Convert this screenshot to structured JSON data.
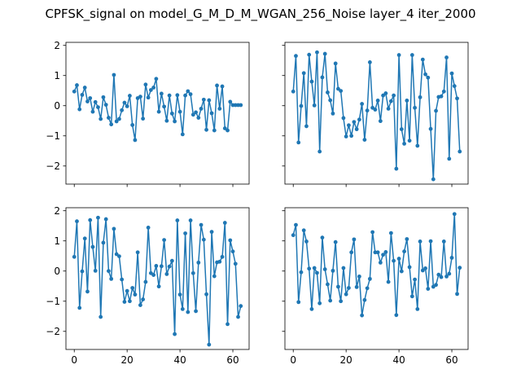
{
  "figure": {
    "title": "CPFSK_signal on model_G_M_D_M_WGAN_256_Noise layer_4 iter_2000"
  },
  "chart_data": [
    {
      "type": "line",
      "panel": "top-left",
      "xlim": [
        -3.15,
        66.15
      ],
      "ylim": [
        -2.6,
        2.1
      ],
      "xticks": [
        0,
        20,
        40,
        60
      ],
      "yticks": [
        -2,
        -1,
        0,
        1,
        2
      ],
      "show_xtick_labels": false,
      "show_ytick_labels": true,
      "color": "#1f77b4",
      "markers": true,
      "x": [
        0,
        1,
        2,
        3,
        4,
        5,
        6,
        7,
        8,
        9,
        10,
        11,
        12,
        13,
        14,
        15,
        16,
        17,
        18,
        19,
        20,
        21,
        22,
        23,
        24,
        25,
        26,
        27,
        28,
        29,
        30,
        31,
        32,
        33,
        34,
        35,
        36,
        37,
        38,
        39,
        40,
        41,
        42,
        43,
        44,
        45,
        46,
        47,
        48,
        49,
        50,
        51,
        52,
        53,
        54,
        55,
        56,
        57,
        58,
        59,
        60,
        61,
        62,
        63
      ],
      "y": [
        0.47,
        0.68,
        -0.12,
        0.36,
        0.6,
        0.14,
        0.25,
        -0.2,
        0.12,
        -0.05,
        -0.44,
        0.28,
        0.03,
        -0.4,
        -0.62,
        1.02,
        -0.52,
        -0.44,
        -0.15,
        0.1,
        -0.02,
        0.33,
        -0.64,
        -1.14,
        0.25,
        0.3,
        -0.43,
        0.7,
        0.27,
        0.52,
        0.6,
        0.89,
        -0.2,
        0.4,
        -0.03,
        -0.5,
        0.34,
        -0.26,
        -0.52,
        0.35,
        -0.2,
        -0.95,
        0.34,
        0.48,
        0.38,
        -0.3,
        -0.22,
        -0.4,
        -0.1,
        0.2,
        -0.8,
        0.18,
        -0.25,
        -0.82,
        0.67,
        -0.1,
        0.64,
        -0.75,
        -0.82,
        0.13,
        0.02,
        0.02,
        0.02,
        0.02
      ]
    },
    {
      "type": "line",
      "panel": "top-right",
      "xlim": [
        -3.15,
        66.15
      ],
      "ylim": [
        -2.6,
        2.1
      ],
      "xticks": [
        0,
        20,
        40,
        60
      ],
      "yticks": [
        -2,
        -1,
        0,
        1,
        2
      ],
      "show_xtick_labels": false,
      "show_ytick_labels": false,
      "color": "#1f77b4",
      "markers": true,
      "x": [
        0,
        1,
        2,
        3,
        4,
        5,
        6,
        7,
        8,
        9,
        10,
        11,
        12,
        13,
        14,
        15,
        16,
        17,
        18,
        19,
        20,
        21,
        22,
        23,
        24,
        25,
        26,
        27,
        28,
        29,
        30,
        31,
        32,
        33,
        34,
        35,
        36,
        37,
        38,
        39,
        40,
        41,
        42,
        43,
        44,
        45,
        46,
        47,
        48,
        49,
        50,
        51,
        52,
        53,
        54,
        55,
        56,
        57,
        58,
        59,
        60,
        61,
        62,
        63
      ],
      "y": [
        0.47,
        1.65,
        -1.22,
        -0.01,
        1.08,
        -0.68,
        1.69,
        0.8,
        0.01,
        1.77,
        -1.52,
        0.94,
        1.72,
        0.44,
        0.18,
        -0.26,
        1.4,
        0.56,
        0.49,
        -0.41,
        -1.02,
        -0.65,
        -1.0,
        -0.54,
        -0.78,
        -0.46,
        0.06,
        -1.13,
        -0.16,
        1.44,
        -0.07,
        -0.13,
        0.17,
        -0.51,
        0.34,
        0.41,
        -0.1,
        0.15,
        0.34,
        -2.09,
        1.68,
        -0.78,
        -1.26,
        0.17,
        -1.16,
        1.68,
        -0.07,
        -1.33,
        0.28,
        1.53,
        1.04,
        0.93,
        -0.77,
        -2.44,
        -0.17,
        0.29,
        0.31,
        0.47,
        1.6,
        -1.76,
        1.07,
        0.65,
        0.24,
        -1.52
      ]
    },
    {
      "type": "line",
      "panel": "bottom-left",
      "xlim": [
        -3.15,
        66.15
      ],
      "ylim": [
        -2.6,
        2.1
      ],
      "xticks": [
        0,
        20,
        40,
        60
      ],
      "yticks": [
        -2,
        -1,
        0,
        1,
        2
      ],
      "show_xtick_labels": true,
      "show_ytick_labels": true,
      "color": "#1f77b4",
      "markers": true,
      "x": [
        0,
        1,
        2,
        3,
        4,
        5,
        6,
        7,
        8,
        9,
        10,
        11,
        12,
        13,
        14,
        15,
        16,
        17,
        18,
        19,
        20,
        21,
        22,
        23,
        24,
        25,
        26,
        27,
        28,
        29,
        30,
        31,
        32,
        33,
        34,
        35,
        36,
        37,
        38,
        39,
        40,
        41,
        42,
        43,
        44,
        45,
        46,
        47,
        48,
        49,
        50,
        51,
        52,
        53,
        54,
        55,
        56,
        57,
        58,
        59,
        60,
        61,
        62,
        63
      ],
      "y": [
        0.47,
        1.65,
        -1.22,
        -0.01,
        1.08,
        -0.68,
        1.69,
        0.8,
        0.01,
        1.77,
        -1.52,
        0.94,
        1.72,
        0.0,
        -0.26,
        1.4,
        0.56,
        0.49,
        -0.28,
        -1.02,
        -0.66,
        -1.0,
        -0.56,
        -0.78,
        0.62,
        -1.13,
        -0.94,
        -0.36,
        1.44,
        -0.07,
        -0.13,
        0.17,
        -0.51,
        0.16,
        1.03,
        -0.1,
        0.15,
        0.34,
        -2.09,
        1.68,
        -0.78,
        -1.26,
        1.25,
        -1.36,
        1.68,
        -0.07,
        -1.33,
        0.28,
        1.53,
        1.04,
        -0.77,
        -2.44,
        1.3,
        -0.17,
        0.29,
        0.31,
        0.47,
        1.6,
        -1.76,
        1.02,
        0.65,
        0.24,
        -1.52,
        -1.16
      ]
    },
    {
      "type": "line",
      "panel": "bottom-right",
      "xlim": [
        -3.15,
        66.15
      ],
      "ylim": [
        -2.6,
        2.1
      ],
      "xticks": [
        0,
        20,
        40,
        60
      ],
      "yticks": [
        -2,
        -1,
        0,
        1,
        2
      ],
      "show_xtick_labels": true,
      "show_ytick_labels": false,
      "color": "#1f77b4",
      "markers": true,
      "x": [
        0,
        1,
        2,
        3,
        4,
        5,
        6,
        7,
        8,
        9,
        10,
        11,
        12,
        13,
        14,
        15,
        16,
        17,
        18,
        19,
        20,
        21,
        22,
        23,
        24,
        25,
        26,
        27,
        28,
        29,
        30,
        31,
        32,
        33,
        34,
        35,
        36,
        37,
        38,
        39,
        40,
        41,
        42,
        43,
        44,
        45,
        46,
        47,
        48,
        49,
        50,
        51,
        52,
        53,
        54,
        55,
        56,
        57,
        58,
        59,
        60,
        61,
        62,
        63
      ],
      "y": [
        1.19,
        1.53,
        -1.03,
        -0.04,
        1.35,
        0.98,
        0.08,
        -1.26,
        0.1,
        -0.06,
        -1.07,
        1.11,
        0.06,
        -0.44,
        -0.98,
        0.01,
        0.96,
        -0.52,
        -1.0,
        0.1,
        -0.77,
        -0.56,
        0.62,
        1.05,
        -0.53,
        -0.18,
        -1.47,
        -0.96,
        -0.57,
        -0.26,
        1.29,
        0.62,
        0.62,
        0.28,
        0.54,
        0.63,
        -0.36,
        1.26,
        0.34,
        -1.46,
        0.41,
        -0.01,
        0.65,
        1.06,
        0.13,
        -0.84,
        -0.28,
        -1.26,
        0.98,
        0.02,
        0.09,
        -0.59,
        0.99,
        -0.52,
        -0.46,
        -0.12,
        -0.2,
        0.98,
        -0.18,
        -0.09,
        0.44,
        1.89,
        -0.76,
        0.11
      ]
    }
  ]
}
